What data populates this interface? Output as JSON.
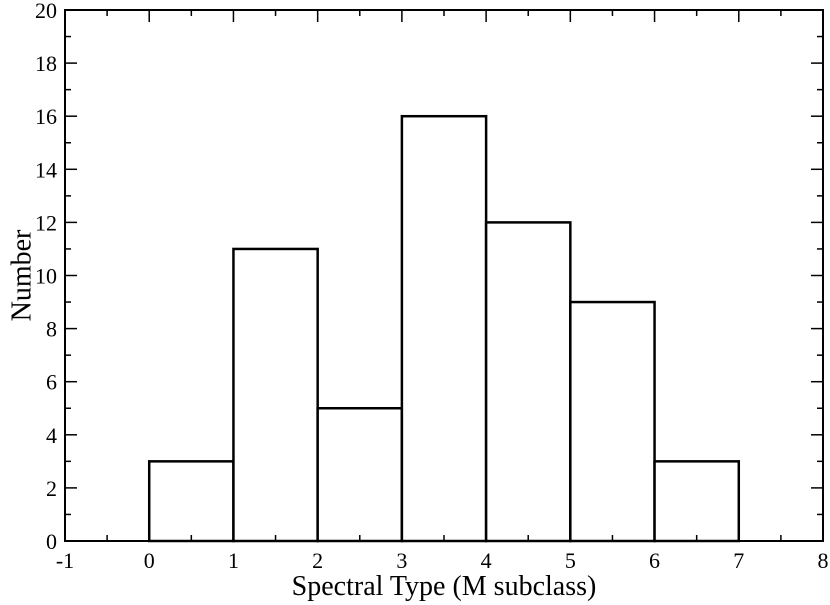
{
  "chart_data": {
    "type": "bar",
    "subtype": "histogram",
    "title": "",
    "xlabel": "Spectral Type (M subclass)",
    "ylabel": "Number",
    "xlim": [
      -1,
      8
    ],
    "ylim": [
      0,
      20
    ],
    "x_major_ticks": [
      -1,
      0,
      1,
      2,
      3,
      4,
      5,
      6,
      7,
      8
    ],
    "x_tick_labels": [
      "-1",
      "0",
      "1",
      "2",
      "3",
      "4",
      "5",
      "6",
      "7",
      "8"
    ],
    "y_major_ticks": [
      0,
      2,
      4,
      6,
      8,
      10,
      12,
      14,
      16,
      18,
      20
    ],
    "y_tick_labels": [
      "0",
      "2",
      "4",
      "6",
      "8",
      "10",
      "12",
      "14",
      "16",
      "18",
      "20"
    ],
    "x_minor_step": 0.5,
    "y_minor_step": 1,
    "grid": false,
    "legend": "none",
    "bins": [
      {
        "x_start": 0,
        "x_end": 1,
        "value": 3
      },
      {
        "x_start": 1,
        "x_end": 2,
        "value": 11
      },
      {
        "x_start": 2,
        "x_end": 3,
        "value": 5
      },
      {
        "x_start": 3,
        "x_end": 4,
        "value": 16
      },
      {
        "x_start": 4,
        "x_end": 5,
        "value": 12
      },
      {
        "x_start": 5,
        "x_end": 6,
        "value": 9
      },
      {
        "x_start": 6,
        "x_end": 7,
        "value": 3
      }
    ],
    "colors": {
      "line": "#000000",
      "fill": "#ffffff",
      "background": "#ffffff"
    }
  }
}
